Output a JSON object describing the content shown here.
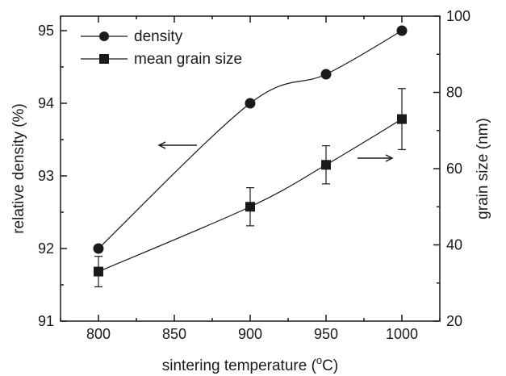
{
  "chart_data": {
    "type": "line",
    "xlabel": "sintering temperature (°C)",
    "xlabel_main": "sintering temperature (",
    "xlabel_sup": "o",
    "xlabel_end": "C)",
    "ylabel_left": "relative density (%)",
    "ylabel_right": "grain size (nm)",
    "xlim": [
      775,
      1025
    ],
    "ylim_left": [
      91,
      95.2
    ],
    "ylim_right": [
      20,
      100
    ],
    "x_ticks": [
      "800",
      "850",
      "900",
      "950",
      "1000"
    ],
    "y_left_ticks": [
      "91",
      "92",
      "93",
      "94",
      "95"
    ],
    "y_right_ticks": [
      "20",
      "40",
      "60",
      "80",
      "100"
    ],
    "legend_position": "top-left",
    "series": [
      {
        "name": "density",
        "axis": "left",
        "marker": "circle",
        "x": [
          800,
          900,
          950,
          1000
        ],
        "y": [
          92.0,
          94.0,
          94.4,
          95.0
        ]
      },
      {
        "name": "mean grain size",
        "axis": "right",
        "marker": "square",
        "x": [
          800,
          900,
          950,
          1000
        ],
        "y": [
          33,
          50,
          61,
          73
        ],
        "error": [
          4,
          5,
          5,
          8
        ]
      }
    ],
    "annotations": [
      {
        "type": "arrow",
        "direction": "left",
        "points_to": "left axis"
      },
      {
        "type": "arrow",
        "direction": "right",
        "points_to": "right axis"
      }
    ]
  }
}
